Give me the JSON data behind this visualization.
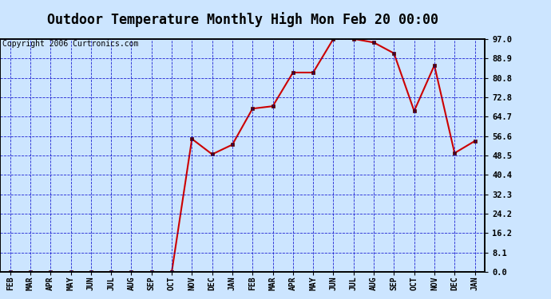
{
  "title": "Outdoor Temperature Monthly High Mon Feb 20 00:00",
  "copyright": "Copyright 2006 Curtronics.com",
  "x_labels": [
    "FEB",
    "MAR",
    "APR",
    "MAY",
    "JUN",
    "JUL",
    "AUG",
    "SEP",
    "OCT",
    "NOV",
    "DEC",
    "JAN",
    "FEB",
    "MAR",
    "APR",
    "MAY",
    "JUN",
    "JUL",
    "AUG",
    "SEP",
    "OCT",
    "NOV",
    "DEC",
    "JAN"
  ],
  "y_values": [
    0.0,
    0.0,
    0.0,
    0.0,
    0.0,
    0.0,
    0.0,
    0.0,
    0.0,
    55.4,
    49.0,
    53.0,
    68.0,
    69.0,
    83.0,
    83.0,
    97.0,
    97.0,
    95.5,
    91.0,
    67.0,
    86.0,
    49.5,
    54.5
  ],
  "yticks": [
    0.0,
    8.1,
    16.2,
    24.2,
    32.3,
    40.4,
    48.5,
    56.6,
    64.7,
    72.8,
    80.8,
    88.9,
    97.0
  ],
  "ytick_labels": [
    "0.0",
    "8.1",
    "16.2",
    "24.2",
    "32.3",
    "40.4",
    "48.5",
    "56.6",
    "64.7",
    "72.8",
    "80.8",
    "88.9",
    "97.0"
  ],
  "ylim": [
    0.0,
    97.0
  ],
  "line_color": "#cc0000",
  "marker_color": "#550000",
  "bg_color": "#cce5ff",
  "grid_color": "#0000cc",
  "border_color": "#000000",
  "title_fontsize": 12,
  "copyright_fontsize": 7
}
